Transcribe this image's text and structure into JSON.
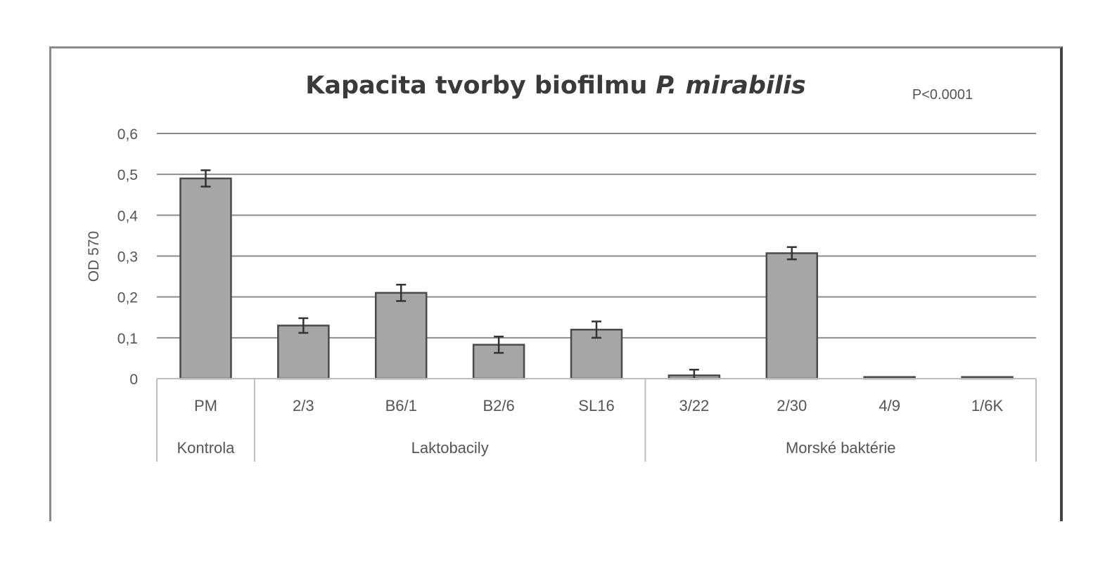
{
  "chart_data": {
    "type": "bar",
    "title": "Kapacita tvorby biofilmu ",
    "title_species": "P. mirabilis",
    "annotation": "P<0.0001",
    "ylabel": "OD 570",
    "xlabel": "",
    "ylim": [
      0,
      0.6
    ],
    "yticks": [
      "0",
      "0,1",
      "0,2",
      "0,3",
      "0,4",
      "0,5",
      "0,6"
    ],
    "grid": true,
    "categories": [
      "PM",
      "2/3",
      "B6/1",
      "B2/6",
      "SL16",
      "3/22",
      "2/30",
      "4/9",
      "1/6K"
    ],
    "values": [
      0.49,
      0.13,
      0.21,
      0.083,
      0.12,
      0.008,
      0.307,
      0.004,
      0.004
    ],
    "errors": [
      0.02,
      0.018,
      0.02,
      0.02,
      0.02,
      0.014,
      0.015,
      0.0,
      0.0
    ],
    "groups": [
      {
        "label": "Kontrola",
        "count": 1
      },
      {
        "label": "Laktobacily",
        "count": 4
      },
      {
        "label": "Morské baktérie",
        "count": 4
      }
    ],
    "colors": {
      "bar": "#a6a6a6",
      "bar_edge": "#4a4a4a",
      "grid": "#8c8c8c"
    }
  }
}
